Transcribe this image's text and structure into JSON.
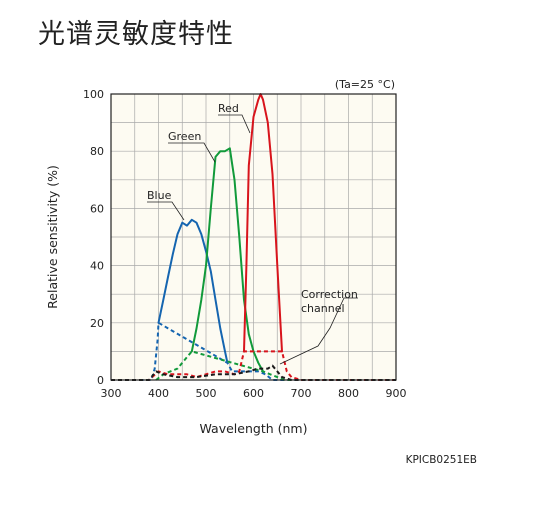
{
  "page": {
    "title": "光谱灵敏度特性"
  },
  "chart_data": {
    "type": "line",
    "xlabel": "Wavelength (nm)",
    "ylabel": "Relative sensitivity (%)",
    "xlim": [
      300,
      900
    ],
    "ylim": [
      0,
      100
    ],
    "xticks": [
      300,
      400,
      500,
      600,
      700,
      800,
      900
    ],
    "yticks": [
      0,
      20,
      40,
      60,
      80,
      100
    ],
    "grid": true,
    "condition_note": "(Ta=25 °C)",
    "figure_code": "KPICB0251EB",
    "annotations": {
      "red": "Red",
      "green": "Green",
      "blue": "Blue",
      "correction_line1": "Correction",
      "correction_line2": "channel"
    },
    "series": [
      {
        "name": "Blue",
        "color": "#1565b0",
        "solid": [
          [
            400,
            20
          ],
          [
            410,
            28
          ],
          [
            420,
            36
          ],
          [
            430,
            44
          ],
          [
            440,
            51
          ],
          [
            450,
            55
          ],
          [
            460,
            54
          ],
          [
            470,
            56
          ],
          [
            480,
            55
          ],
          [
            490,
            51
          ],
          [
            500,
            45
          ],
          [
            510,
            38
          ],
          [
            520,
            28
          ],
          [
            530,
            18
          ],
          [
            540,
            10
          ],
          [
            545,
            6
          ]
        ],
        "dashed": [
          [
            360,
            0
          ],
          [
            385,
            0
          ],
          [
            392,
            4
          ],
          [
            398,
            14
          ],
          [
            400,
            20
          ],
          [
            545,
            6
          ],
          [
            555,
            3
          ],
          [
            565,
            3
          ],
          [
            580,
            3
          ],
          [
            595,
            3
          ],
          [
            610,
            3
          ],
          [
            625,
            2
          ],
          [
            640,
            0
          ],
          [
            660,
            0
          ],
          [
            900,
            0
          ]
        ]
      },
      {
        "name": "Green",
        "color": "#119a3a",
        "solid": [
          [
            470,
            10
          ],
          [
            480,
            18
          ],
          [
            490,
            28
          ],
          [
            500,
            40
          ],
          [
            510,
            60
          ],
          [
            520,
            78
          ],
          [
            530,
            80
          ],
          [
            540,
            80
          ],
          [
            550,
            81
          ],
          [
            560,
            70
          ],
          [
            570,
            50
          ],
          [
            580,
            28
          ],
          [
            590,
            16
          ],
          [
            600,
            10
          ],
          [
            610,
            6
          ],
          [
            620,
            3
          ]
        ],
        "dashed": [
          [
            395,
            0
          ],
          [
            410,
            2
          ],
          [
            425,
            3
          ],
          [
            440,
            4
          ],
          [
            450,
            6
          ],
          [
            460,
            8
          ],
          [
            470,
            10
          ],
          [
            620,
            3
          ],
          [
            635,
            2
          ],
          [
            650,
            1
          ],
          [
            665,
            0
          ],
          [
            680,
            0
          ]
        ]
      },
      {
        "name": "Red",
        "color": "#d8141c",
        "solid": [
          [
            580,
            10
          ],
          [
            585,
            40
          ],
          [
            590,
            75
          ],
          [
            600,
            92
          ],
          [
            610,
            98
          ],
          [
            615,
            100
          ],
          [
            620,
            98
          ],
          [
            630,
            90
          ],
          [
            640,
            72
          ],
          [
            650,
            40
          ],
          [
            660,
            10
          ]
        ],
        "dashed": [
          [
            300,
            0
          ],
          [
            380,
            0
          ],
          [
            400,
            3
          ],
          [
            420,
            2
          ],
          [
            440,
            2
          ],
          [
            460,
            2
          ],
          [
            480,
            1
          ],
          [
            500,
            2
          ],
          [
            520,
            3
          ],
          [
            540,
            3
          ],
          [
            560,
            2
          ],
          [
            570,
            3
          ],
          [
            580,
            10
          ],
          [
            660,
            10
          ],
          [
            670,
            3
          ],
          [
            680,
            1
          ],
          [
            700,
            0
          ],
          [
            900,
            0
          ]
        ]
      },
      {
        "name": "Correction channel",
        "color": "#1a1a1a",
        "solid": [],
        "dashed": [
          [
            300,
            0
          ],
          [
            380,
            0
          ],
          [
            395,
            3
          ],
          [
            410,
            2
          ],
          [
            440,
            1
          ],
          [
            480,
            1
          ],
          [
            520,
            2
          ],
          [
            560,
            2
          ],
          [
            590,
            3
          ],
          [
            610,
            4
          ],
          [
            630,
            4
          ],
          [
            640,
            5
          ],
          [
            650,
            3
          ],
          [
            660,
            1
          ],
          [
            680,
            0
          ],
          [
            900,
            0
          ]
        ]
      }
    ]
  }
}
